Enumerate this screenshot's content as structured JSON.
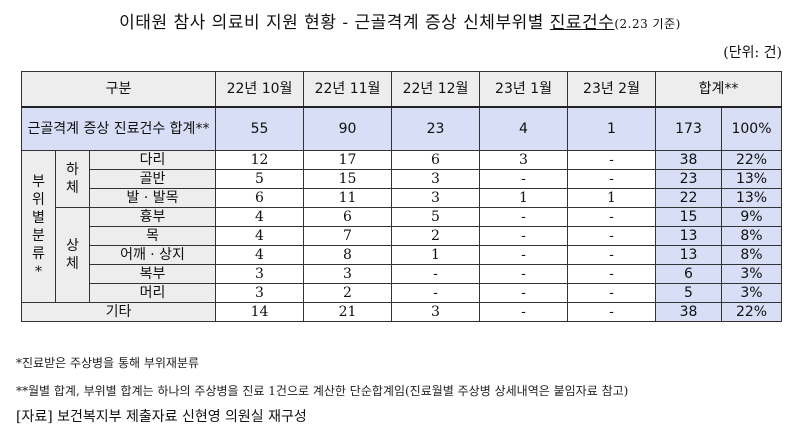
{
  "title": {
    "main": "이태원 참사 의료비 지원 현황 - 근골격계 증상 신체부위별 ",
    "underlined": "진료건수",
    "date": "(2.23 기준)"
  },
  "unit": "(단위: 건)",
  "table": {
    "headers": [
      "구분",
      "22년 10월",
      "22년 11월",
      "22년 12월",
      "23년 1월",
      "23년 2월",
      "합계**"
    ],
    "total_row": {
      "label": "근골격계 증상 진료건수 합계**",
      "values": [
        "55",
        "90",
        "23",
        "4",
        "1"
      ],
      "sum": "173",
      "pct": "100%"
    },
    "group_label": "부위별분류*",
    "subgroups": [
      {
        "label": "하체",
        "rows": [
          {
            "label": "다리",
            "values": [
              "12",
              "17",
              "6",
              "3",
              "-"
            ],
            "sum": "38",
            "pct": "22%"
          },
          {
            "label": "골반",
            "values": [
              "5",
              "15",
              "3",
              "-",
              "-"
            ],
            "sum": "23",
            "pct": "13%"
          },
          {
            "label": "발 · 발목",
            "values": [
              "6",
              "11",
              "3",
              "1",
              "1"
            ],
            "sum": "22",
            "pct": "13%"
          }
        ]
      },
      {
        "label": "상체",
        "rows": [
          {
            "label": "흉부",
            "values": [
              "4",
              "6",
              "5",
              "-",
              "-"
            ],
            "sum": "15",
            "pct": "9%"
          },
          {
            "label": "목",
            "values": [
              "4",
              "7",
              "2",
              "-",
              "-"
            ],
            "sum": "13",
            "pct": "8%"
          },
          {
            "label": "어깨 · 상지",
            "values": [
              "4",
              "8",
              "1",
              "-",
              "-"
            ],
            "sum": "13",
            "pct": "8%"
          },
          {
            "label": "복부",
            "values": [
              "3",
              "3",
              "-",
              "-",
              "-"
            ],
            "sum": "6",
            "pct": "3%"
          },
          {
            "label": "머리",
            "values": [
              "3",
              "2",
              "-",
              "-",
              "-"
            ],
            "sum": "5",
            "pct": "3%"
          }
        ]
      }
    ],
    "other_row": {
      "label": "기타",
      "values": [
        "14",
        "21",
        "3",
        "-",
        "-"
      ],
      "sum": "38",
      "pct": "22%"
    }
  },
  "notes": [
    "*진료받은 주상병을 통해 부위재분류",
    "**월별 합계, 부위별 합계는 하나의 주상병을 진료 1건으로 계산한 단순합계임(진료월별 주상병 상세내역은 붙임자료 참고)"
  ],
  "source": "[자료] 보건복지부 제출자료 신현영 의원실 재구성"
}
